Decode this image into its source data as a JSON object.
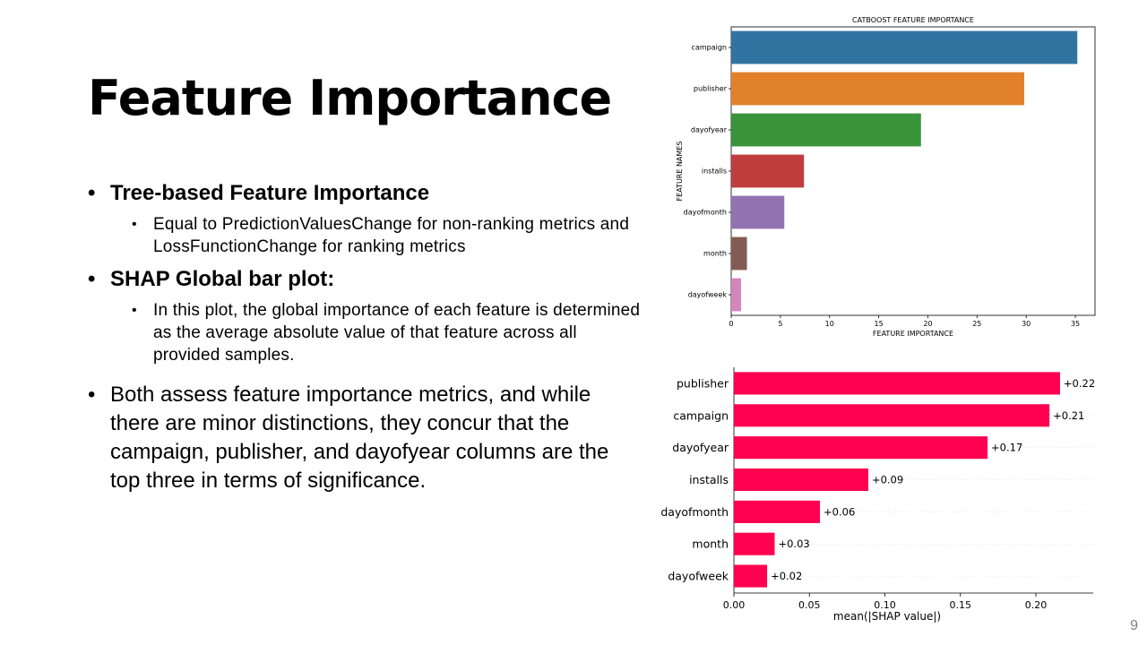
{
  "slide": {
    "title": "Feature Importance",
    "page_number": "9",
    "bullets": [
      {
        "text": "Tree-based Feature Importance",
        "sub": [
          "Equal to PredictionValuesChange  for non-ranking metrics and LossFunctionChange  for ranking metrics"
        ]
      },
      {
        "text": "SHAP Global bar plot:",
        "sub": [
          "In this plot, the global importance of each feature is determined as the average absolute value of that feature across all provided samples."
        ]
      },
      {
        "text": "Both assess feature importance metrics, and while there are minor distinctions, they concur that the campaign, publisher, and dayofyear columns are the top three in terms of significance."
      }
    ]
  },
  "chart_data": [
    {
      "type": "bar",
      "orientation": "horizontal",
      "title": "CATBOOST FEATURE IMPORTANCE",
      "xlabel": "FEATURE IMPORTANCE",
      "ylabel": "FEATURE NAMES",
      "categories": [
        "campaign",
        "publisher",
        "dayofyear",
        "installs",
        "dayofmonth",
        "month",
        "dayofweek"
      ],
      "values": [
        35.2,
        29.8,
        19.3,
        7.4,
        5.4,
        1.6,
        1.0
      ],
      "colors": [
        "#3274a1",
        "#e1812c",
        "#3a923a",
        "#c03d3e",
        "#9372b2",
        "#845b53",
        "#d684bd"
      ],
      "xticks": [
        0,
        5,
        10,
        15,
        20,
        25,
        30,
        35
      ],
      "xlim": [
        0,
        37
      ],
      "grid": false
    },
    {
      "type": "bar",
      "orientation": "horizontal",
      "title": "",
      "xlabel": "mean(|SHAP value|)",
      "ylabel": "",
      "categories": [
        "publisher",
        "campaign",
        "dayofyear",
        "installs",
        "dayofmonth",
        "month",
        "dayofweek"
      ],
      "values": [
        0.216,
        0.209,
        0.168,
        0.089,
        0.057,
        0.027,
        0.022
      ],
      "labels": [
        "+0.22",
        "+0.21",
        "+0.17",
        "+0.09",
        "+0.06",
        "+0.03",
        "+0.02"
      ],
      "color": "#ff0051",
      "xticks": [
        "0.00",
        "0.05",
        "0.10",
        "0.15",
        "0.20"
      ],
      "xlim": [
        0,
        0.238
      ],
      "grid": false
    }
  ]
}
